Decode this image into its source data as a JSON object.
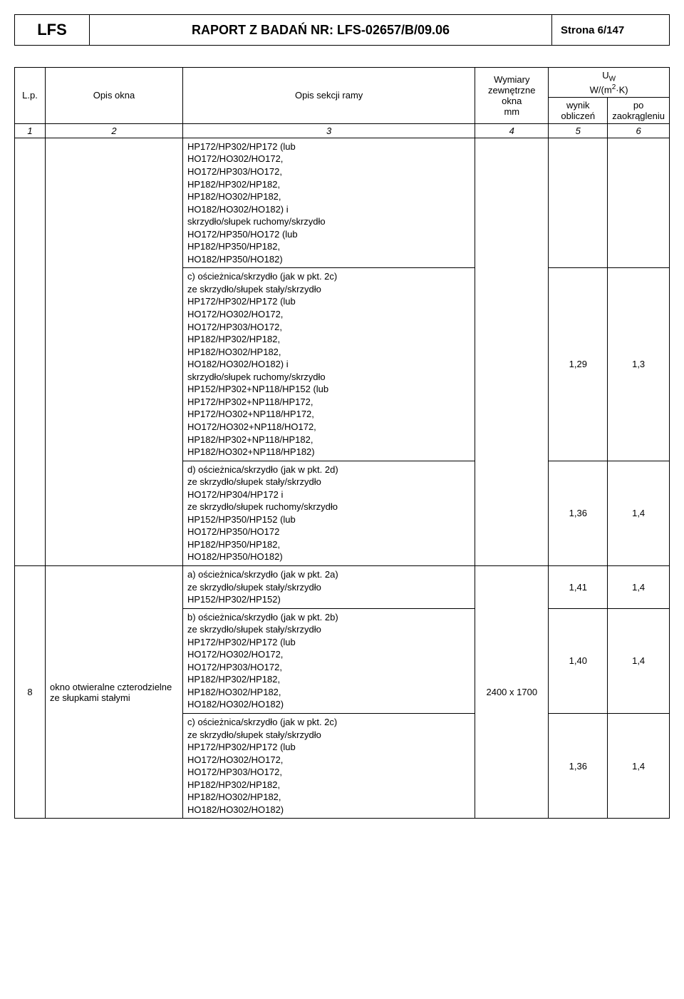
{
  "header": {
    "lfs": "LFS",
    "title": "RAPORT Z BADAŃ NR: LFS-02657/B/09.06",
    "page": "Strona 6/147"
  },
  "columns": {
    "lp": "L.p.",
    "opis_okna": "Opis okna",
    "sekcja": "Opis sekcji ramy",
    "wymiary_l1": "Wymiary",
    "wymiary_l2": "zewnętrzne",
    "wymiary_l3": "okna",
    "wymiary_l4": "mm",
    "uw_label": "U",
    "uw_sub": "W",
    "uw_unit_pre": "W/(m",
    "uw_unit_sup": "2",
    "uw_unit_post": "·K)",
    "wynik_l1": "wynik",
    "wynik_l2": "obliczeń",
    "po_l1": "po",
    "po_l2": "zaokrągleniu"
  },
  "index": {
    "c1": "1",
    "c2": "2",
    "c3": "3",
    "c4": "4",
    "c5": "5",
    "c6": "6"
  },
  "rows": [
    {
      "text": "HP172/HP302/HP172 (lub\nHO172/HO302/HO172,\nHO172/HP303/HO172,\nHP182/HP302/HP182,\nHP182/HO302/HP182,\nHO182/HO302/HO182) i\nskrzydło/słupek ruchomy/skrzydło\nHO172/HP350/HO172 (lub\nHP182/HP350/HP182,\nHO182/HP350/HO182)",
      "val1": "",
      "val2": ""
    },
    {
      "text": "c) ościeżnica/skrzydło (jak w pkt. 2c)\nze skrzydło/słupek stały/skrzydło\nHP172/HP302/HP172 (lub\nHO172/HO302/HO172,\nHO172/HP303/HO172,\nHP182/HP302/HP182,\nHP182/HO302/HP182,\nHO182/HO302/HO182) i\nskrzydło/słupek ruchomy/skrzydło\nHP152/HP302+NP118/HP152 (lub\nHP172/HP302+NP118/HP172,\nHP172/HO302+NP118/HP172,\nHO172/HO302+NP118/HO172,\nHP182/HP302+NP118/HP182,\nHP182/HO302+NP118/HP182)",
      "val1": "1,29",
      "val2": "1,3"
    },
    {
      "text": "d) ościeżnica/skrzydło (jak w pkt. 2d)\nze skrzydło/słupek stały/skrzydło\nHO172/HP304/HP172 i\nze skrzydło/słupek ruchomy/skrzydło\nHP152/HP350/HP152 (lub\nHO172/HP350/HO172\nHP182/HP350/HP182,\nHO182/HP350/HO182)",
      "val1": "1,36",
      "val2": "1,4"
    },
    {
      "text": "a) ościeżnica/skrzydło (jak w pkt. 2a)\nze skrzydło/słupek stały/skrzydło\nHP152/HP302/HP152)",
      "val1": "1,41",
      "val2": "1,4"
    },
    {
      "text": "b) ościeżnica/skrzydło (jak w pkt. 2b)\nze skrzydło/słupek stały/skrzydło\nHP172/HP302/HP172 (lub\nHO172/HO302/HO172,\nHO172/HP303/HO172,\nHP182/HP302/HP182,\nHP182/HO302/HP182,\nHO182/HO302/HO182)",
      "val1": "1,40",
      "val2": "1,4"
    },
    {
      "text": "c) ościeżnica/skrzydło (jak w pkt. 2c)\nze skrzydło/słupek stały/skrzydło\nHP172/HP302/HP172 (lub\nHO172/HO302/HO172,\nHO172/HP303/HO172,\nHP182/HP302/HP182,\nHP182/HO302/HP182,\nHO182/HO302/HO182)",
      "val1": "1,36",
      "val2": "1,4"
    }
  ],
  "group2": {
    "lp": "8",
    "opis": "okno otwieralne czterodzielne ze słupkami stałymi",
    "wymiary": "2400 x 1700"
  }
}
